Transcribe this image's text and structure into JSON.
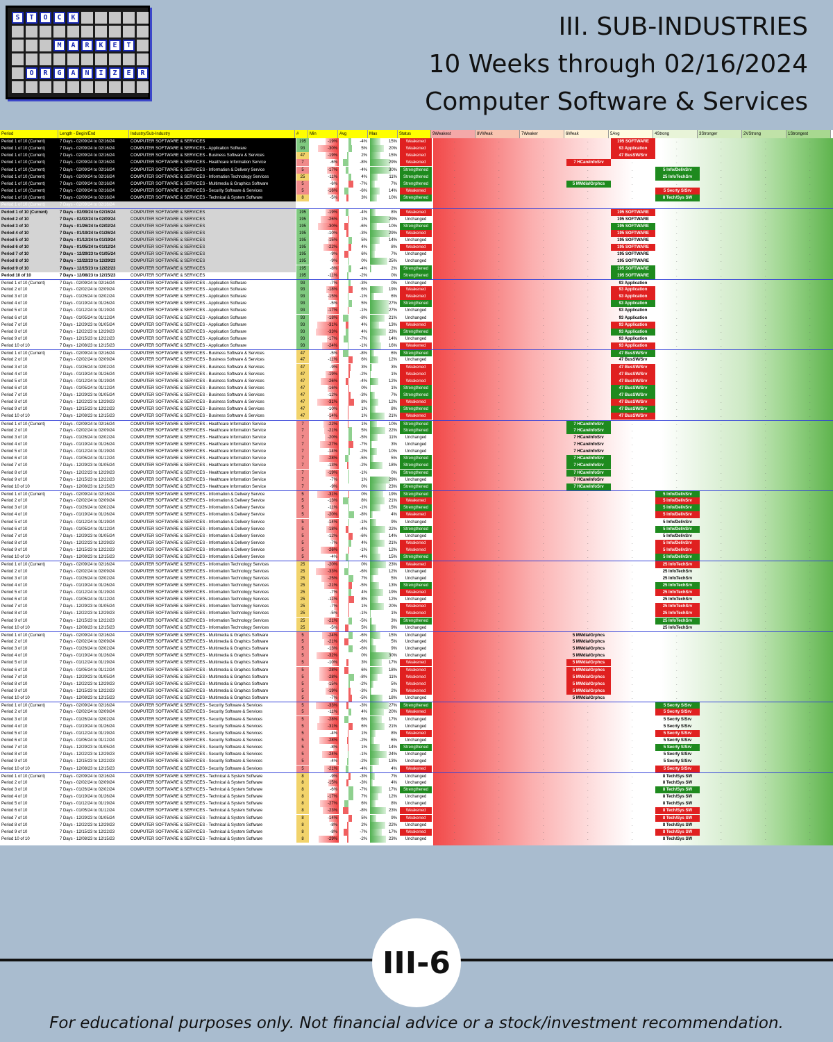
{
  "logo": {
    "rows": [
      [
        "S",
        "T",
        "O",
        "C",
        "K",
        "",
        "",
        "",
        "",
        ""
      ],
      [
        "",
        "",
        "",
        "",
        "",
        "",
        "",
        "",
        "",
        ""
      ],
      [
        "",
        "",
        "",
        "M",
        "A",
        "R",
        "K",
        "E",
        "T",
        ""
      ],
      [
        "",
        "",
        "",
        "",
        "",
        "",
        "",
        "",
        "",
        ""
      ],
      [
        "",
        "O",
        "R",
        "G",
        "A",
        "N",
        "I",
        "Z",
        "E",
        "R"
      ],
      [
        "",
        "",
        "",
        "",
        "",
        "",
        "",
        "",
        "",
        ""
      ]
    ]
  },
  "title": {
    "line1": "III. SUB-INDUSTRIES",
    "line2": "10 Weeks through 02/16/2024",
    "line3": "Computer Software & Services"
  },
  "table": {
    "headers": [
      "Period",
      "Length - Begin/End",
      "Industry/Sub-Industry",
      "#",
      "Min",
      "Avg",
      "Max",
      "Status",
      "9Weakest",
      "8VWeak",
      "7Weaker",
      "6Weak",
      "5Avg",
      "4Strong",
      "3Stronger",
      "2VStrong",
      "1Strongest"
    ],
    "header_colors": [
      "#ffff00",
      "#ffff00",
      "#ffff00",
      "#ffff00",
      "#ffff00",
      "#ffff00",
      "#ffff00",
      "#ffff00",
      "#f4a8a8",
      "#f8c4b0",
      "#fde0c8",
      "#fff2d8",
      "#fffce0",
      "#e8f4d8",
      "#d4ecc0",
      "#c0e2a8",
      "#a8d890"
    ],
    "status_colors": {
      "Weakened": "#e02020",
      "Strengthened": "#1e8a1e",
      "Unchanged": "#ffffff"
    }
  },
  "page_label": "III-6",
  "disclaimer": "For educational purposes only. Not financial advice or a stock/investment recommendation."
}
